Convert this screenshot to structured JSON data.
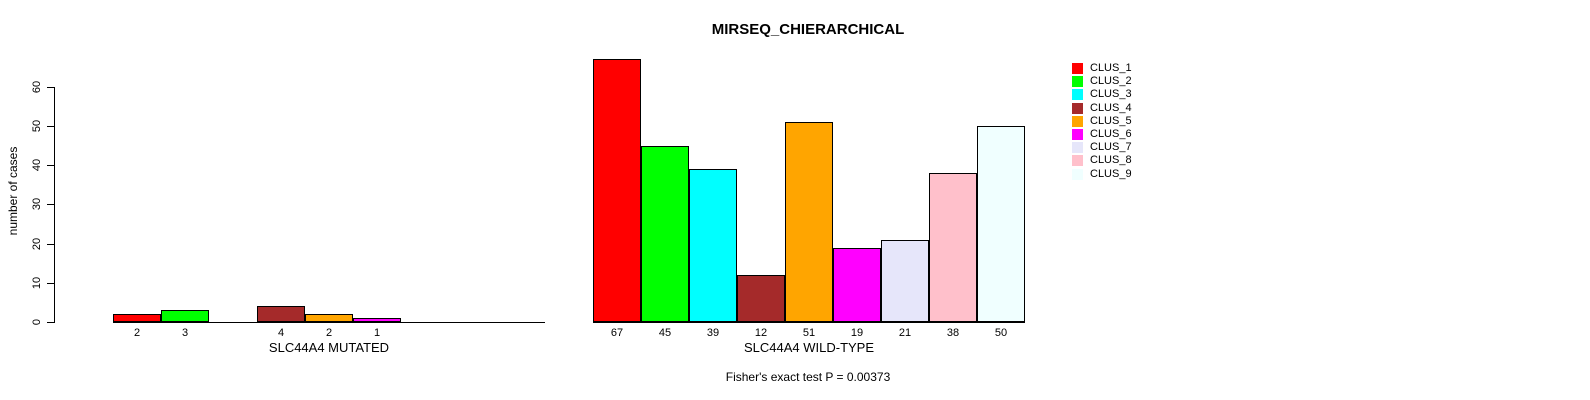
{
  "chart_data": {
    "type": "bar",
    "title": "MIRSEQ_CHIERARCHICAL",
    "ylabel": "number of cases",
    "xlabel": "",
    "ylim": [
      0,
      67
    ],
    "yticks": [
      0,
      10,
      20,
      30,
      40,
      50,
      60
    ],
    "grid": false,
    "legend_position": "right",
    "categories": [
      "SLC44A4 MUTATED",
      "SLC44A4 WILD-TYPE"
    ],
    "series": [
      {
        "name": "CLUS_1",
        "color": "#FF0000",
        "values": [
          2,
          67
        ]
      },
      {
        "name": "CLUS_2",
        "color": "#00FF00",
        "values": [
          3,
          45
        ]
      },
      {
        "name": "CLUS_3",
        "color": "#00FFFF",
        "values": [
          0,
          39
        ]
      },
      {
        "name": "CLUS_4",
        "color": "#A52A2A",
        "values": [
          4,
          12
        ]
      },
      {
        "name": "CLUS_5",
        "color": "#FFA500",
        "values": [
          2,
          51
        ]
      },
      {
        "name": "CLUS_6",
        "color": "#FF00FF",
        "values": [
          1,
          19
        ]
      },
      {
        "name": "CLUS_7",
        "color": "#E6E6FA",
        "values": [
          0,
          21
        ]
      },
      {
        "name": "CLUS_8",
        "color": "#FFC0CB",
        "values": [
          0,
          38
        ]
      },
      {
        "name": "CLUS_9",
        "color": "#F0FFFF",
        "values": [
          0,
          50
        ]
      }
    ],
    "zero_bars_hidden": true,
    "annotation": "Fisher's exact test P = 0.00373"
  }
}
